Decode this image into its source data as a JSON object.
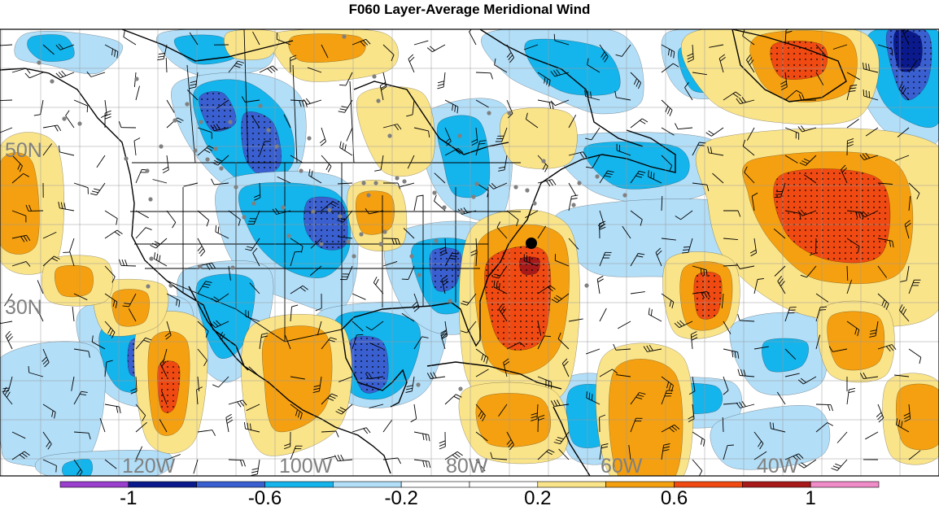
{
  "title": "F060 Layer-Average Meridional Wind",
  "map": {
    "projection": "cylindrical lat-lon",
    "lat_labels": [
      "50N",
      "30N"
    ],
    "lon_labels": [
      "120W",
      "100W",
      "80W",
      "60W",
      "40W"
    ],
    "gridlines": true,
    "label_color": "#808080",
    "marker": "black-dot"
  },
  "colorbar": {
    "tick_labels": [
      "-1",
      "-0.6",
      "-0.2",
      "0.2",
      "0.6",
      "1"
    ],
    "levels": [
      -1.2,
      -1.0,
      -0.8,
      -0.6,
      -0.4,
      -0.2,
      0,
      0.2,
      0.4,
      0.6,
      0.8,
      1.0,
      1.2
    ],
    "colors": [
      "#9b3fcf",
      "#0a1a8c",
      "#3a5fd0",
      "#14b4ec",
      "#b2def8",
      "#ffffff",
      "#ffffff",
      "#fae48a",
      "#f5a010",
      "#f04a12",
      "#a81a1a",
      "#f08cc8"
    ]
  }
}
